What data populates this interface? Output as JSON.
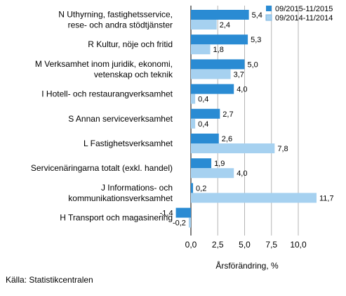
{
  "chart_data": {
    "type": "bar",
    "orientation": "horizontal",
    "xlabel": "Årsförändring, %",
    "xlim": [
      -2.7,
      13.5
    ],
    "xticks": [
      "0,0",
      "2,5",
      "5,0",
      "7,5",
      "10,0"
    ],
    "xtick_values": [
      0,
      2.5,
      5,
      7.5,
      10
    ],
    "grid": true,
    "legend_position": "top-right",
    "categories": [
      [
        "N Uthyrning, fastighetsservice,",
        "rese- och andra stödtjänster"
      ],
      [
        "R Kultur, nöje och fritid"
      ],
      [
        "M Verksamhet inom juridik, ekonomi,",
        "vetenskap och teknik"
      ],
      [
        "I Hotell- och restaurangverksamhet"
      ],
      [
        "S Annan serviceverksamhet"
      ],
      [
        "L Fastighetsverksamhet"
      ],
      [
        "Servicenäringarna totalt (exkl. handel)"
      ],
      [
        "J Informations- och",
        "kommunikationsverksamhet"
      ],
      [
        "H Transport och magasinering"
      ]
    ],
    "series": [
      {
        "name": "09/2015-11/2015",
        "color": "#2a8bd3",
        "values": [
          5.4,
          5.3,
          5.0,
          4.0,
          2.7,
          2.6,
          1.9,
          0.2,
          -1.4
        ],
        "labels": [
          "5,4",
          "5,3",
          "5,0",
          "4,0",
          "2,7",
          "2,6",
          "1,9",
          "0,2",
          "-1,4"
        ]
      },
      {
        "name": "09/2014-11/2014",
        "color": "#a6d1f0",
        "values": [
          2.4,
          1.8,
          3.7,
          0.4,
          0.4,
          7.8,
          4.0,
          11.7,
          -0.2
        ],
        "labels": [
          "2,4",
          "1,8",
          "3,7",
          "0,4",
          "0,4",
          "7,8",
          "4,0",
          "11,7",
          "-0,2"
        ]
      }
    ]
  },
  "source": "Källa: Statistikcentralen"
}
